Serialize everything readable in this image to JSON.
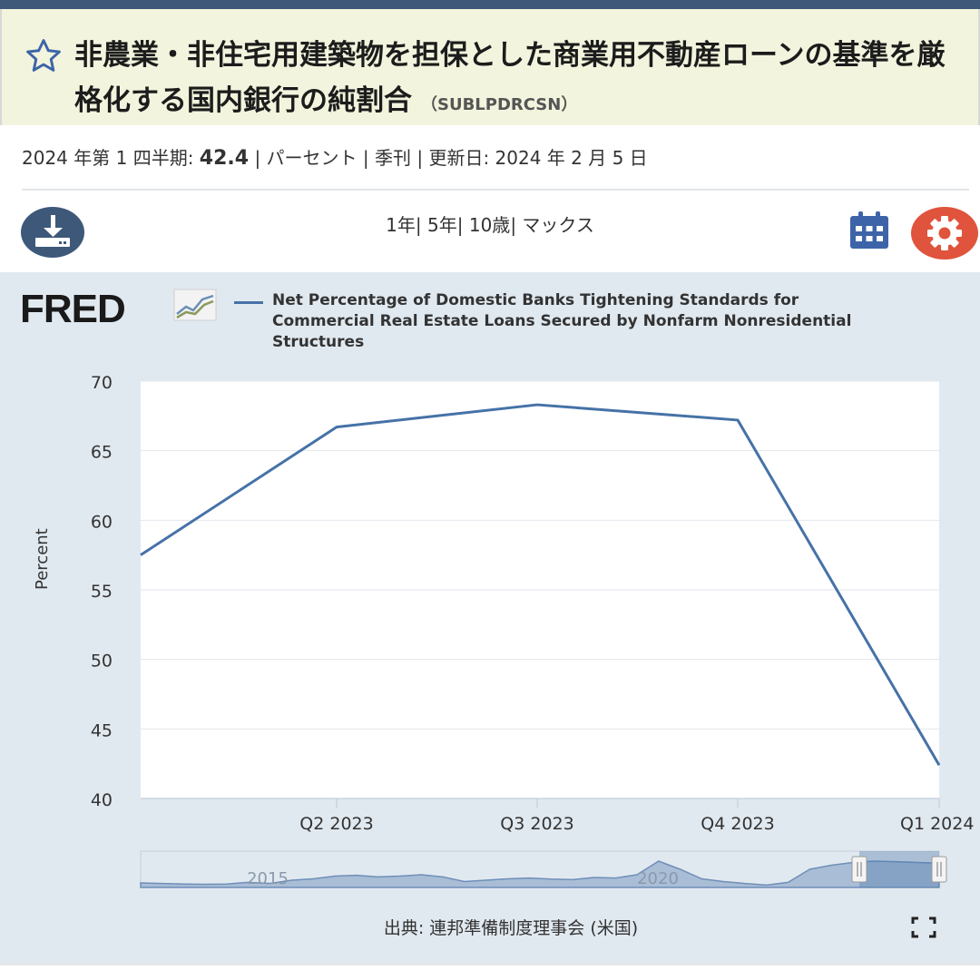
{
  "header": {
    "title": "非農業・非住宅用建築物を担保とした商業用不動産ローンの基準を厳格化する国内銀行の純割合",
    "series_id": "（SUBLPDRCSN）"
  },
  "meta": {
    "period_label": "2024 年第 1 四半期:",
    "value": "42.4",
    "rest": "| パーセント | 季刊 | 更新日: 2024 年 2 月 5 日"
  },
  "toolbar": {
    "ranges": [
      "1年",
      "5年",
      "10歳",
      "マックス"
    ],
    "separator": "|"
  },
  "icons": {
    "favorite": "star-outline-icon",
    "download": "download-icon",
    "calendar": "calendar-icon",
    "settings": "gear-icon",
    "fullscreen": "fullscreen-icon"
  },
  "colors": {
    "series": "#4572a7",
    "panel": "#e1e9f0",
    "header": "#3d5879",
    "settings": "#e0533c"
  },
  "logo": {
    "text": "FRED"
  },
  "chart_data": {
    "type": "line",
    "legend": "Net Percentage of Domestic Banks Tightening Standards for Commercial Real Estate Loans Secured by Nonfarm Nonresidential Structures",
    "ylabel": "Percent",
    "ylim": [
      40,
      70
    ],
    "yticks": [
      "70",
      "65",
      "60",
      "55",
      "50",
      "45",
      "40"
    ],
    "x_labels": [
      "Q2 2023",
      "Q3 2023",
      "Q4 2023",
      "Q1 2024"
    ],
    "series": [
      {
        "name": "Net Percentage of Domestic Banks Tightening Standards for Commercial Real Estate Loans Secured by Nonfarm Nonresidential Structures",
        "x": [
          "2023-01-25",
          "Q2 2023",
          "Q3 2023",
          "Q4 2023",
          "Q1 2024"
        ],
        "values": [
          57.5,
          66.7,
          68.3,
          67.2,
          42.4
        ]
      }
    ],
    "grid": true,
    "navigator": {
      "labels": [
        "2015",
        "2020"
      ],
      "values": [
        0.1,
        0.08,
        0.06,
        0.05,
        0.06,
        0.12,
        0.08,
        0.2,
        0.25,
        0.35,
        0.38,
        0.32,
        0.35,
        0.4,
        0.32,
        0.15,
        0.2,
        0.25,
        0.28,
        0.24,
        0.22,
        0.3,
        0.28,
        0.4,
        0.9,
        0.6,
        0.25,
        0.15,
        0.08,
        0.02,
        0.12,
        0.6,
        0.75,
        0.85,
        0.9,
        0.88,
        0.85,
        0.82
      ],
      "selected_from_fraction": 0.9
    }
  },
  "footer": {
    "source": "出典: 連邦準備制度理事会 (米国)"
  }
}
